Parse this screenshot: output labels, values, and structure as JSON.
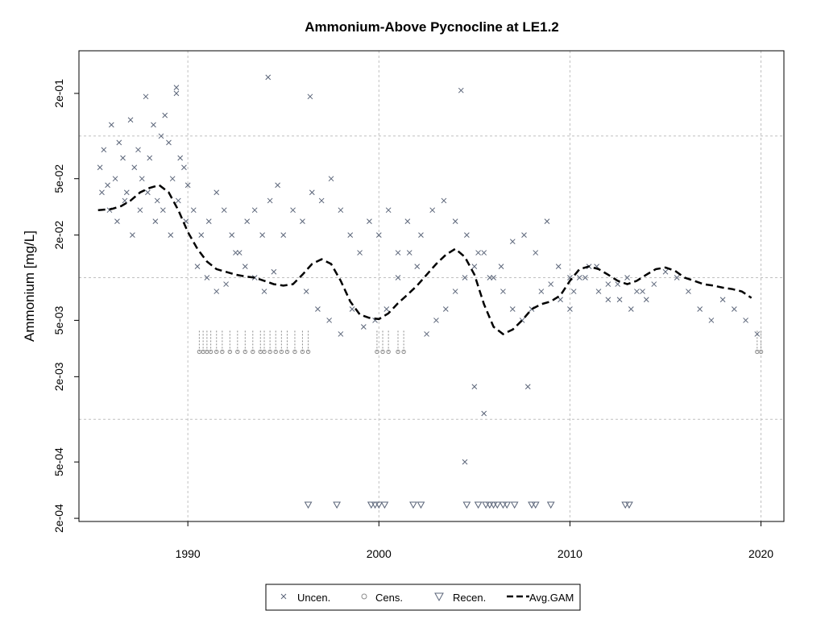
{
  "chart_data": {
    "type": "scatter",
    "title": "Ammonium-Above Pycnocline at LE1.2",
    "xlabel": "",
    "ylabel": "Ammonium [mg/L]",
    "y_scale": "log10",
    "xlim": [
      1984.3,
      2021.2
    ],
    "ylim": [
      0.00019,
      0.4
    ],
    "x_ticks": [
      1990,
      2000,
      2010,
      2020
    ],
    "x_tick_labels": [
      "1990",
      "2000",
      "2010",
      "2020"
    ],
    "y_ticks": [
      0.0002,
      0.0005,
      0.002,
      0.005,
      0.02,
      0.05,
      0.2
    ],
    "y_tick_labels": [
      "2e-04",
      "5e-04",
      "2e-03",
      "5e-03",
      "2e-02",
      "5e-02",
      "2e-01"
    ],
    "grid": true,
    "legend_position": "bottom",
    "colors": {
      "points": "#5a6478",
      "censored": "#8c8c8c",
      "gam": "#000000",
      "grid": "#c0c0c0"
    },
    "series": [
      {
        "name": "Uncen.",
        "marker": "x",
        "x": [
          1985.4,
          1985.6,
          1985.8,
          1986.0,
          1986.2,
          1986.4,
          1986.6,
          1986.8,
          1987.0,
          1987.2,
          1987.4,
          1987.6,
          1987.8,
          1988.0,
          1988.2,
          1988.4,
          1988.6,
          1988.8,
          1989.0,
          1989.2,
          1989.4,
          1989.6,
          1989.8,
          1990.0,
          1985.5,
          1985.9,
          1986.3,
          1986.7,
          1987.1,
          1987.5,
          1987.9,
          1988.3,
          1988.7,
          1989.1,
          1989.5,
          1989.9,
          1990.3,
          1990.7,
          1991.1,
          1991.5,
          1991.9,
          1992.3,
          1992.7,
          1993.1,
          1993.5,
          1993.9,
          1994.3,
          1994.7,
          1990.5,
          1991.0,
          1991.5,
          1992.0,
          1992.5,
          1993.0,
          1993.5,
          1994.0,
          1994.5,
          1995.0,
          1995.5,
          1996.0,
          1996.5,
          1997.0,
          1997.5,
          1998.0,
          1998.5,
          1999.0,
          1999.5,
          2000.0,
          2000.5,
          2001.0,
          2001.5,
          2002.0,
          1996.2,
          1996.8,
          1997.4,
          1998.0,
          1998.6,
          1999.2,
          1999.8,
          2000.4,
          2001.0,
          2001.6,
          2002.2,
          2002.8,
          2003.4,
          2004.0,
          2004.6,
          2005.2,
          2005.8,
          2006.4,
          2007.0,
          2007.6,
          2008.2,
          2008.8,
          2009.4,
          2010.0,
          2002.5,
          2003.0,
          2003.5,
          2004.0,
          2004.5,
          2005.0,
          2005.5,
          2006.0,
          2006.5,
          2007.0,
          2007.5,
          2008.0,
          2008.5,
          2009.0,
          2009.5,
          2010.0,
          2010.5,
          2011.0,
          2011.5,
          2012.0,
          2012.5,
          2013.0,
          2013.5,
          2014.0,
          2010.2,
          2010.8,
          2011.4,
          2012.0,
          2012.6,
          2013.2,
          2013.8,
          2014.4,
          2015.0,
          2015.6,
          2016.2,
          2016.8,
          2017.4,
          2018.0,
          2018.6,
          2019.2,
          2019.8,
          1994.2,
          2004.3,
          1996.4,
          1989.4,
          2005.0,
          2004.5,
          2005.5,
          2007.8
        ],
        "y": [
          0.06,
          0.08,
          0.045,
          0.12,
          0.05,
          0.09,
          0.07,
          0.04,
          0.13,
          0.06,
          0.08,
          0.05,
          0.19,
          0.07,
          0.12,
          0.035,
          0.1,
          0.14,
          0.09,
          0.05,
          0.2,
          0.07,
          0.06,
          0.045,
          0.04,
          0.03,
          0.025,
          0.035,
          0.02,
          0.03,
          0.04,
          0.025,
          0.03,
          0.02,
          0.035,
          0.025,
          0.03,
          0.02,
          0.025,
          0.04,
          0.03,
          0.02,
          0.015,
          0.025,
          0.03,
          0.02,
          0.035,
          0.045,
          0.012,
          0.01,
          0.008,
          0.009,
          0.015,
          0.012,
          0.01,
          0.008,
          0.011,
          0.02,
          0.03,
          0.025,
          0.04,
          0.035,
          0.05,
          0.03,
          0.02,
          0.015,
          0.025,
          0.02,
          0.03,
          0.015,
          0.025,
          0.012,
          0.008,
          0.006,
          0.005,
          0.004,
          0.006,
          0.0045,
          0.005,
          0.006,
          0.01,
          0.015,
          0.02,
          0.03,
          0.035,
          0.025,
          0.02,
          0.015,
          0.01,
          0.012,
          0.018,
          0.02,
          0.015,
          0.025,
          0.012,
          0.01,
          0.004,
          0.005,
          0.006,
          0.008,
          0.01,
          0.012,
          0.015,
          0.01,
          0.008,
          0.006,
          0.005,
          0.006,
          0.008,
          0.009,
          0.007,
          0.006,
          0.01,
          0.012,
          0.008,
          0.007,
          0.009,
          0.01,
          0.008,
          0.007,
          0.008,
          0.01,
          0.012,
          0.009,
          0.007,
          0.006,
          0.008,
          0.009,
          0.011,
          0.01,
          0.008,
          0.006,
          0.005,
          0.007,
          0.006,
          0.005,
          0.004,
          0.26,
          0.21,
          0.19,
          0.22,
          0.0017,
          0.0005,
          0.0011,
          0.0017
        ]
      },
      {
        "name": "Cens.",
        "marker": "o",
        "x": [
          1990.6,
          1990.8,
          1991.0,
          1991.2,
          1991.5,
          1991.8,
          1992.2,
          1992.6,
          1993.0,
          1993.4,
          1993.8,
          1994.0,
          1994.3,
          1994.6,
          1994.9,
          1995.2,
          1995.6,
          1996.0,
          1996.3,
          1999.9,
          2000.2,
          2000.5,
          2001.0,
          2001.3,
          2019.8,
          2020.0
        ],
        "y": [
          0.003,
          0.003,
          0.003,
          0.003,
          0.003,
          0.003,
          0.003,
          0.003,
          0.003,
          0.003,
          0.003,
          0.003,
          0.003,
          0.003,
          0.003,
          0.003,
          0.003,
          0.003,
          0.003,
          0.003,
          0.003,
          0.003,
          0.003,
          0.003,
          0.003,
          0.003
        ]
      },
      {
        "name": "Recen.",
        "marker": "triangle-down",
        "x": [
          1996.3,
          1997.8,
          1999.6,
          1999.8,
          2000.0,
          2000.3,
          2001.8,
          2002.2,
          2004.6,
          2005.2,
          2005.6,
          2005.8,
          2006.0,
          2006.2,
          2006.5,
          2006.7,
          2007.1,
          2008.0,
          2008.2,
          2009.0,
          2012.9,
          2013.1
        ],
        "y": [
          0.00025,
          0.00025,
          0.00025,
          0.00025,
          0.00025,
          0.00025,
          0.00025,
          0.00025,
          0.00025,
          0.00025,
          0.00025,
          0.00025,
          0.00025,
          0.00025,
          0.00025,
          0.00025,
          0.00025,
          0.00025,
          0.00025,
          0.00025,
          0.00025,
          0.00025
        ]
      },
      {
        "name": "Avg.GAM",
        "marker": "dashed-line",
        "x": [
          1985.3,
          1986.0,
          1986.5,
          1987.0,
          1987.5,
          1988.0,
          1988.5,
          1989.0,
          1989.5,
          1990.0,
          1990.5,
          1991.0,
          1991.5,
          1992.0,
          1992.5,
          1993.0,
          1993.5,
          1994.0,
          1994.5,
          1995.0,
          1995.5,
          1996.0,
          1996.5,
          1997.0,
          1997.5,
          1998.0,
          1998.5,
          1999.0,
          1999.5,
          2000.0,
          2000.5,
          2001.0,
          2001.5,
          2002.0,
          2002.5,
          2003.0,
          2003.5,
          2004.0,
          2004.5,
          2005.0,
          2005.5,
          2006.0,
          2006.5,
          2007.0,
          2007.5,
          2008.0,
          2008.5,
          2009.0,
          2009.5,
          2010.0,
          2010.5,
          2011.0,
          2011.5,
          2012.0,
          2012.5,
          2013.0,
          2013.5,
          2014.0,
          2014.5,
          2015.0,
          2015.5,
          2016.0,
          2016.5,
          2017.0,
          2017.5,
          2018.0,
          2018.5,
          2019.0,
          2019.5
        ],
        "y": [
          0.03,
          0.0305,
          0.032,
          0.035,
          0.04,
          0.043,
          0.045,
          0.04,
          0.03,
          0.021,
          0.016,
          0.013,
          0.0115,
          0.011,
          0.0105,
          0.0102,
          0.01,
          0.0095,
          0.009,
          0.0088,
          0.009,
          0.0105,
          0.0125,
          0.0135,
          0.0125,
          0.0095,
          0.0068,
          0.0055,
          0.0052,
          0.0051,
          0.0056,
          0.0066,
          0.0076,
          0.0088,
          0.0105,
          0.0125,
          0.0145,
          0.016,
          0.014,
          0.0105,
          0.0065,
          0.0045,
          0.004,
          0.0043,
          0.005,
          0.006,
          0.0065,
          0.0068,
          0.0075,
          0.0095,
          0.0115,
          0.012,
          0.0115,
          0.0105,
          0.0095,
          0.009,
          0.0095,
          0.0105,
          0.0115,
          0.0118,
          0.0112,
          0.01,
          0.0095,
          0.009,
          0.0088,
          0.0085,
          0.0083,
          0.008,
          0.0072
        ]
      }
    ],
    "legend": [
      "Uncen.",
      "Cens.",
      "Recen.",
      "Avg.GAM"
    ]
  }
}
